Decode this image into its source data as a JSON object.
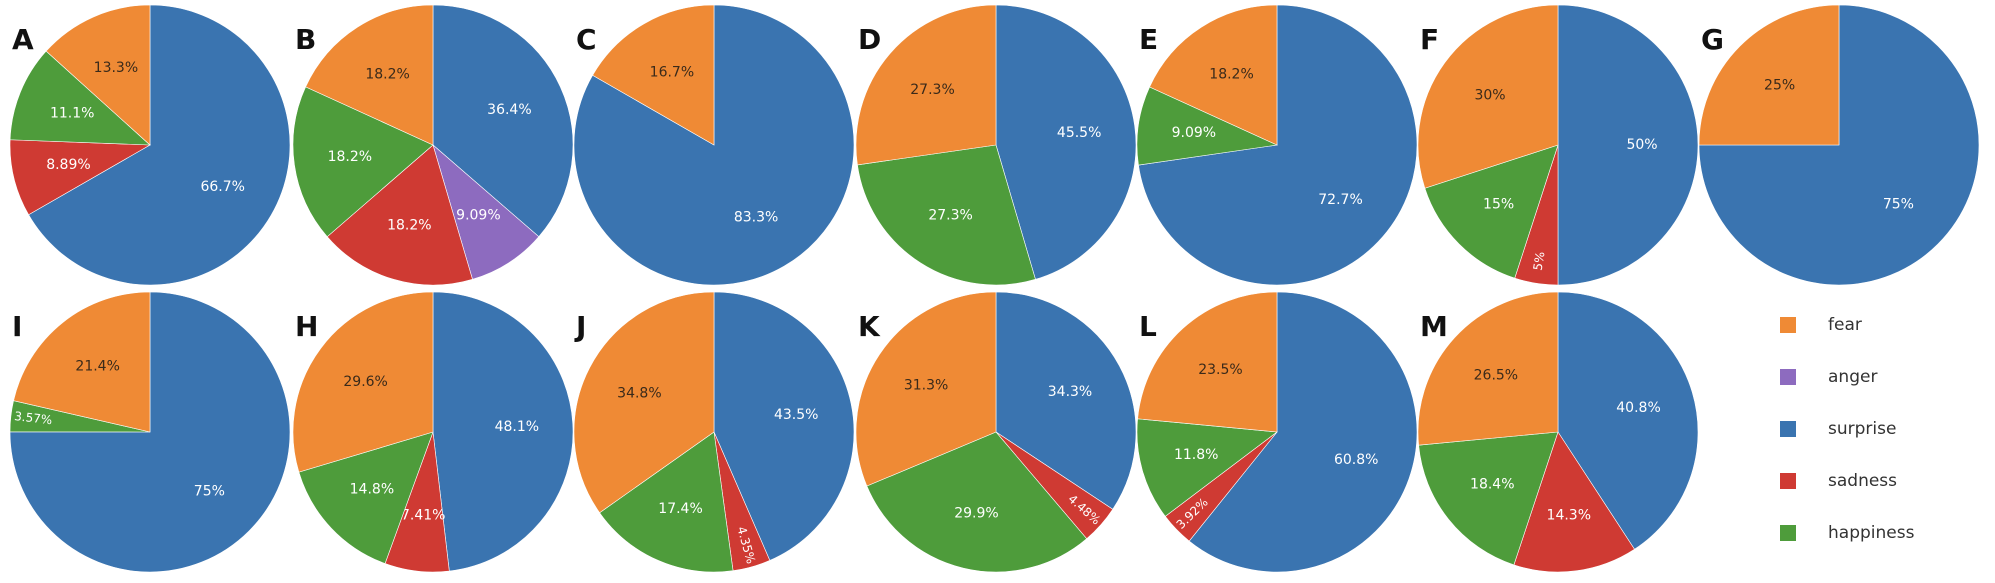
{
  "colors": {
    "fear": "#ef8a35",
    "anger": "#8d6bbf",
    "surprise": "#3a74b0",
    "sadness": "#cf3a33",
    "happiness": "#4e9c3b"
  },
  "legend": {
    "items": [
      {
        "key": "fear",
        "label": "fear"
      },
      {
        "key": "anger",
        "label": "anger"
      },
      {
        "key": "surprise",
        "label": "surprise"
      },
      {
        "key": "sadness",
        "label": "sadness"
      },
      {
        "key": "happiness",
        "label": "happiness"
      }
    ]
  },
  "chart_data": [
    {
      "type": "pie",
      "panel": "A",
      "slices": [
        {
          "category": "surprise",
          "value": 66.7,
          "label": "66.7%"
        },
        {
          "category": "sadness",
          "value": 8.89,
          "label": "8.89%"
        },
        {
          "category": "happiness",
          "value": 11.1,
          "label": "11.1%"
        },
        {
          "category": "fear",
          "value": 13.3,
          "label": "13.3%"
        }
      ]
    },
    {
      "type": "pie",
      "panel": "B",
      "slices": [
        {
          "category": "surprise",
          "value": 36.4,
          "label": "36.4%"
        },
        {
          "category": "anger",
          "value": 9.09,
          "label": "9.09%"
        },
        {
          "category": "sadness",
          "value": 18.2,
          "label": "18.2%"
        },
        {
          "category": "happiness",
          "value": 18.2,
          "label": "18.2%"
        },
        {
          "category": "fear",
          "value": 18.2,
          "label": "18.2%"
        }
      ]
    },
    {
      "type": "pie",
      "panel": "C",
      "slices": [
        {
          "category": "surprise",
          "value": 83.3,
          "label": "83.3%"
        },
        {
          "category": "fear",
          "value": 16.7,
          "label": "16.7%"
        }
      ]
    },
    {
      "type": "pie",
      "panel": "D",
      "slices": [
        {
          "category": "surprise",
          "value": 45.5,
          "label": "45.5%"
        },
        {
          "category": "happiness",
          "value": 27.3,
          "label": "27.3%"
        },
        {
          "category": "fear",
          "value": 27.3,
          "label": "27.3%"
        }
      ]
    },
    {
      "type": "pie",
      "panel": "E",
      "slices": [
        {
          "category": "surprise",
          "value": 72.7,
          "label": "72.7%"
        },
        {
          "category": "happiness",
          "value": 9.09,
          "label": "9.09%"
        },
        {
          "category": "fear",
          "value": 18.2,
          "label": "18.2%"
        }
      ]
    },
    {
      "type": "pie",
      "panel": "F",
      "slices": [
        {
          "category": "surprise",
          "value": 50,
          "label": "50%"
        },
        {
          "category": "sadness",
          "value": 5,
          "label": "5%"
        },
        {
          "category": "happiness",
          "value": 15,
          "label": "15%"
        },
        {
          "category": "fear",
          "value": 30,
          "label": "30%"
        }
      ]
    },
    {
      "type": "pie",
      "panel": "G",
      "slices": [
        {
          "category": "surprise",
          "value": 75,
          "label": "75%"
        },
        {
          "category": "fear",
          "value": 25,
          "label": "25%"
        }
      ]
    },
    {
      "type": "pie",
      "panel": "I",
      "slices": [
        {
          "category": "surprise",
          "value": 75,
          "label": "75%"
        },
        {
          "category": "happiness",
          "value": 3.57,
          "label": "3.57%"
        },
        {
          "category": "fear",
          "value": 21.4,
          "label": "21.4%"
        }
      ]
    },
    {
      "type": "pie",
      "panel": "H",
      "slices": [
        {
          "category": "surprise",
          "value": 48.1,
          "label": "48.1%"
        },
        {
          "category": "sadness",
          "value": 7.41,
          "label": "7.41%"
        },
        {
          "category": "happiness",
          "value": 14.8,
          "label": "14.8%"
        },
        {
          "category": "fear",
          "value": 29.6,
          "label": "29.6%"
        }
      ]
    },
    {
      "type": "pie",
      "panel": "J",
      "slices": [
        {
          "category": "surprise",
          "value": 43.5,
          "label": "43.5%"
        },
        {
          "category": "sadness",
          "value": 4.35,
          "label": "4.35%"
        },
        {
          "category": "happiness",
          "value": 17.4,
          "label": "17.4%"
        },
        {
          "category": "fear",
          "value": 34.8,
          "label": "34.8%"
        }
      ]
    },
    {
      "type": "pie",
      "panel": "K",
      "slices": [
        {
          "category": "surprise",
          "value": 34.3,
          "label": "34.3%"
        },
        {
          "category": "sadness",
          "value": 4.48,
          "label": "4.48%"
        },
        {
          "category": "happiness",
          "value": 29.9,
          "label": "29.9%"
        },
        {
          "category": "fear",
          "value": 31.3,
          "label": "31.3%"
        }
      ]
    },
    {
      "type": "pie",
      "panel": "L",
      "slices": [
        {
          "category": "surprise",
          "value": 60.8,
          "label": "60.8%"
        },
        {
          "category": "sadness",
          "value": 3.92,
          "label": "3.92%"
        },
        {
          "category": "happiness",
          "value": 11.8,
          "label": "11.8%"
        },
        {
          "category": "fear",
          "value": 23.5,
          "label": "23.5%"
        }
      ]
    },
    {
      "type": "pie",
      "panel": "M",
      "slices": [
        {
          "category": "surprise",
          "value": 40.8,
          "label": "40.8%"
        },
        {
          "category": "sadness",
          "value": 14.3,
          "label": "14.3%"
        },
        {
          "category": "happiness",
          "value": 18.4,
          "label": "18.4%"
        },
        {
          "category": "fear",
          "value": 26.5,
          "label": "26.5%"
        }
      ]
    }
  ]
}
